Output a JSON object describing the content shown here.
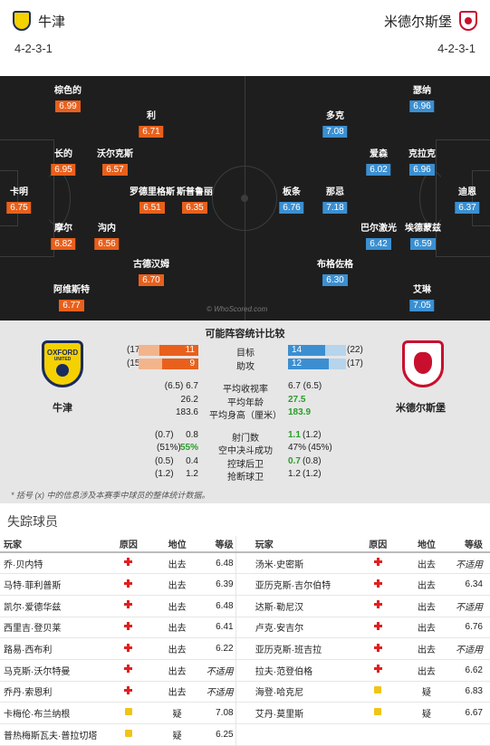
{
  "header": {
    "home_team": "牛津",
    "away_team": "米德尔斯堡",
    "home_formation": "4-2-3-1",
    "away_formation": "4-2-3-1",
    "home_badge_text": "OXFORD"
  },
  "pitch": {
    "watermark": "© WhoScored.com",
    "home_players": [
      {
        "name": "棕色的",
        "rating": "6.99"
      },
      {
        "name": "利",
        "rating": "6.71"
      },
      {
        "name": "长的",
        "rating": "6.95"
      },
      {
        "name": "沃尔克斯",
        "rating": "6.57"
      },
      {
        "name": "卡明",
        "rating": "6.75"
      },
      {
        "name": "罗德里格斯",
        "rating": "6.51"
      },
      {
        "name": "斯普鲁丽",
        "rating": "6.35"
      },
      {
        "name": "摩尔",
        "rating": "6.82"
      },
      {
        "name": "沟内",
        "rating": "6.56"
      },
      {
        "name": "古德汉姆",
        "rating": "6.70"
      },
      {
        "name": "阿维斯特",
        "rating": "6.77"
      }
    ],
    "away_players": [
      {
        "name": "瑟纳",
        "rating": "6.96"
      },
      {
        "name": "多克",
        "rating": "7.08"
      },
      {
        "name": "爱森",
        "rating": "6.02"
      },
      {
        "name": "克拉克",
        "rating": "6.96"
      },
      {
        "name": "板条",
        "rating": "6.76"
      },
      {
        "name": "那忌",
        "rating": "7.18"
      },
      {
        "name": "迪恩",
        "rating": "6.37"
      },
      {
        "name": "巴尔激光",
        "rating": "6.42"
      },
      {
        "name": "埃德蒙兹",
        "rating": "6.59"
      },
      {
        "name": "布格佐格",
        "rating": "6.30"
      },
      {
        "name": "艾琳",
        "rating": "7.05"
      }
    ]
  },
  "compare": {
    "title": "可能阵容统计比较",
    "home_team": "牛津",
    "away_team": "米德尔斯堡",
    "oxford_badge_line1": "OXFORD",
    "oxford_badge_line2": "UNITED",
    "bars": [
      {
        "label": "目标",
        "home": "11",
        "home_paren": "(17)",
        "away": "14",
        "away_paren": "(22)",
        "home_frac": 0.65,
        "away_frac": 0.64
      },
      {
        "label": "助攻",
        "home": "9",
        "home_paren": "(15)",
        "away": "12",
        "away_paren": "(17)",
        "home_frac": 0.6,
        "away_frac": 0.71
      }
    ],
    "rows1": [
      {
        "label": "平均收视率",
        "home": "(6.5) 6.7",
        "away": "6.7 (6.5)",
        "home_green": false,
        "away_green": false
      },
      {
        "label": "平均年龄",
        "home": "26.2",
        "away": "27.5",
        "home_green": false,
        "away_green": true
      },
      {
        "label": "平均身高（厘米）",
        "home": "183.6",
        "away": "183.9",
        "home_green": false,
        "away_green": true
      }
    ],
    "rows2": [
      {
        "label": "射门数",
        "home_paren": "(0.7)",
        "home": "0.8",
        "away": "1.1",
        "away_paren": "(1.2)",
        "home_green": false,
        "away_green": true
      },
      {
        "label": "空中决斗成功",
        "home_paren": "(51%)",
        "home": "55%",
        "away": "47%",
        "away_paren": "(45%)",
        "home_green": true,
        "away_green": false
      },
      {
        "label": "控球后卫",
        "home_paren": "(0.5)",
        "home": "0.4",
        "away": "0.7",
        "away_paren": "(0.8)",
        "home_green": false,
        "away_green": true
      },
      {
        "label": "抢断球卫",
        "home_paren": "(1.2)",
        "home": "1.2",
        "away": "1.2",
        "away_paren": "(1.2)",
        "home_green": false,
        "away_green": false
      }
    ],
    "footnote": "* 括号 (x) 中的信息涉及本赛季中球员的整体统计数据。"
  },
  "missing": {
    "title": "失踪球员",
    "headers": {
      "player": "玩家",
      "reason": "原因",
      "status": "地位",
      "rating": "等级"
    },
    "home": [
      {
        "name": "乔·贝内特",
        "reason": "injury",
        "status": "出去",
        "rating": "6.48"
      },
      {
        "name": "马特·菲利普斯",
        "reason": "injury",
        "status": "出去",
        "rating": "6.39"
      },
      {
        "name": "凯尔·爱德华兹",
        "reason": "injury",
        "status": "出去",
        "rating": "6.48"
      },
      {
        "name": "西里吉·登贝莱",
        "reason": "injury",
        "status": "出去",
        "rating": "6.41"
      },
      {
        "name": "路易·西布利",
        "reason": "injury",
        "status": "出去",
        "rating": "6.22"
      },
      {
        "name": "马克斯·沃尔特曼",
        "reason": "injury",
        "status": "出去",
        "rating": "不适用"
      },
      {
        "name": "乔丹·索恩利",
        "reason": "injury",
        "status": "出去",
        "rating": "不适用"
      },
      {
        "name": "卡梅伦·布兰纳根",
        "reason": "doubt",
        "status": "疑",
        "rating": "7.08"
      },
      {
        "name": "普热梅斯瓦夫·普拉切塔",
        "reason": "doubt",
        "status": "疑",
        "rating": "6.25"
      }
    ],
    "away": [
      {
        "name": "汤米·史密斯",
        "reason": "injury",
        "status": "出去",
        "rating": "不适用"
      },
      {
        "name": "亚历克斯·吉尔伯特",
        "reason": "injury",
        "status": "出去",
        "rating": "6.34"
      },
      {
        "name": "达斯·勒尼汉",
        "reason": "injury",
        "status": "出去",
        "rating": "不适用"
      },
      {
        "name": "卢克·安吉尔",
        "reason": "injury",
        "status": "出去",
        "rating": "6.76"
      },
      {
        "name": "亚历克斯·班吉拉",
        "reason": "injury",
        "status": "出去",
        "rating": "不适用"
      },
      {
        "name": "拉夫·范登伯格",
        "reason": "injury",
        "status": "出去",
        "rating": "6.62"
      },
      {
        "name": "海登·哈克尼",
        "reason": "doubt",
        "status": "疑",
        "rating": "6.83"
      },
      {
        "name": "艾丹·莫里斯",
        "reason": "doubt",
        "status": "疑",
        "rating": "6.67"
      }
    ]
  },
  "colors": {
    "home_rating": "#e8601c",
    "away_rating": "#3b8fd1",
    "pitch": "#1e1e1e",
    "injury": "#e02020",
    "doubt": "#f0c419",
    "better": "#2a9d2a"
  }
}
